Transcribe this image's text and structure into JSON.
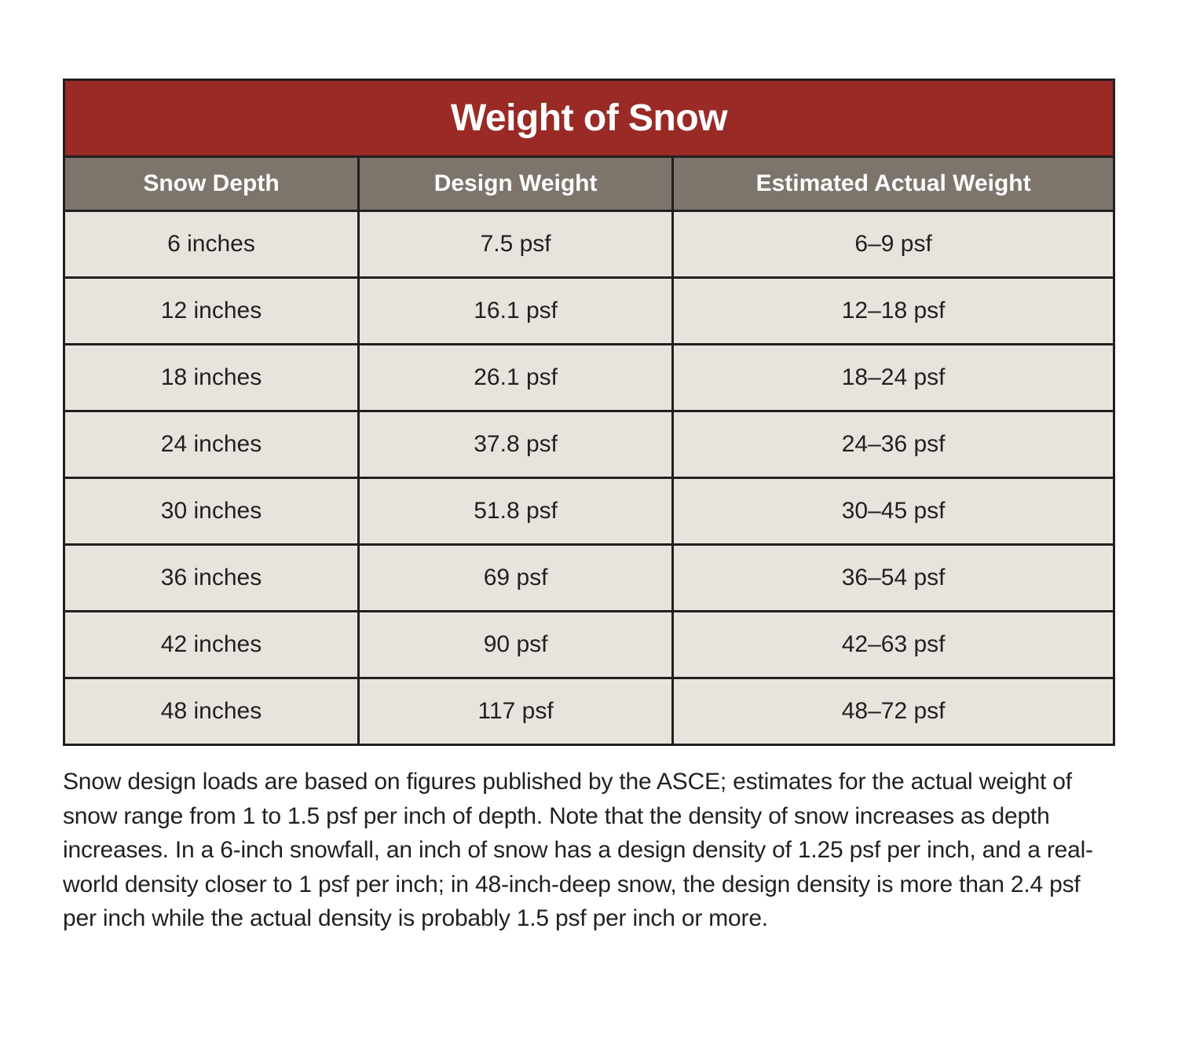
{
  "table": {
    "title": "Weight of Snow",
    "title_bg": "#992a26",
    "title_color": "#ffffff",
    "title_fontsize": 48,
    "header_bg": "#7d746c",
    "header_color": "#ffffff",
    "header_fontsize": 30,
    "cell_bg": "#e8e4dd",
    "cell_color": "#231f20",
    "cell_fontsize": 30,
    "border_color": "#231f20",
    "columns": [
      {
        "label": "Snow Depth",
        "width": "28%"
      },
      {
        "label": "Design Weight",
        "width": "30%"
      },
      {
        "label": "Estimated Actual Weight",
        "width": "42%"
      }
    ],
    "rows": [
      [
        "6 inches",
        "7.5 psf",
        "6–9 psf"
      ],
      [
        "12 inches",
        "16.1 psf",
        "12–18 psf"
      ],
      [
        "18 inches",
        "26.1 psf",
        "18–24 psf"
      ],
      [
        "24 inches",
        "37.8 psf",
        "24–36 psf"
      ],
      [
        "30 inches",
        "51.8 psf",
        "30–45 psf"
      ],
      [
        "36 inches",
        "69 psf",
        "36–54 psf"
      ],
      [
        "42 inches",
        "90 psf",
        "42–63 psf"
      ],
      [
        "48 inches",
        "117 psf",
        "48–72 psf"
      ]
    ]
  },
  "caption": "Snow design loads are based on figures published by the ASCE; estimates for the actual weight of snow range from 1 to 1.5 psf per inch of depth. Note that the density of snow increases as depth increases. In a 6-inch snowfall, an inch of snow has a design density of 1.25 psf per inch, and a real-world density closer to 1 psf per inch; in 48-inch-deep snow, the design density is more than 2.4 psf per inch while the actual density is probably 1.5 psf per inch or more.",
  "caption_fontsize": 30,
  "caption_color": "#231f20",
  "background_color": "#ffffff"
}
